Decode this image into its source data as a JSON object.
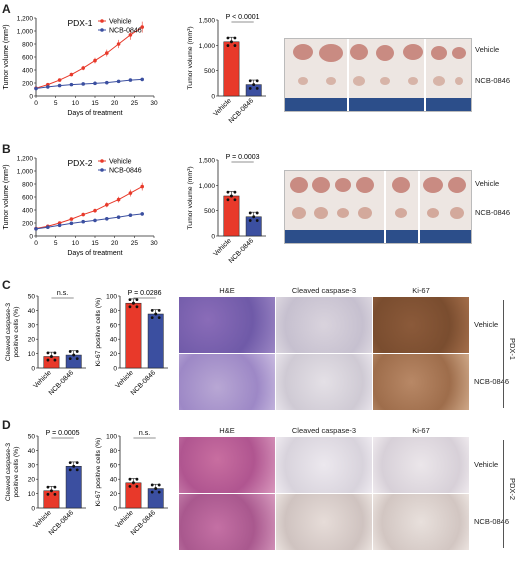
{
  "panels": {
    "A": {
      "letter": "A"
    },
    "B": {
      "letter": "B"
    },
    "C": {
      "letter": "C"
    },
    "D": {
      "letter": "D"
    }
  },
  "colors": {
    "vehicle": "#e8392a",
    "ncb": "#3b4fa0"
  },
  "legend": {
    "vehicle": "Vehicle",
    "ncb": "NCB-0846"
  },
  "chart_data": [
    {
      "id": "A-growth",
      "type": "line",
      "title": "PDX-1",
      "xlabel": "Days of treatment",
      "ylabel": "Tumor volume (mm³)",
      "xlim": [
        0,
        30
      ],
      "ylim": [
        0,
        1200
      ],
      "xticks": [
        "0",
        "5",
        "10",
        "15",
        "20",
        "25",
        "30"
      ],
      "yticks": [
        "0",
        "200",
        "400",
        "600",
        "800",
        "1,000",
        "1,200"
      ],
      "x": [
        0,
        3,
        6,
        9,
        12,
        15,
        18,
        21,
        24,
        27
      ],
      "series": [
        {
          "name": "Vehicle",
          "values": [
            120,
            175,
            245,
            330,
            430,
            545,
            660,
            800,
            940,
            1060
          ]
        },
        {
          "name": "NCB-0846",
          "values": [
            115,
            140,
            160,
            175,
            185,
            195,
            205,
            225,
            245,
            255
          ]
        }
      ]
    },
    {
      "id": "A-bar",
      "type": "bar",
      "ylabel": "Tumor volume (mm³)",
      "categories": [
        "Vehicle",
        "NCB-0846"
      ],
      "values": [
        1070,
        225
      ],
      "ylim": [
        0,
        1500
      ],
      "yticks": [
        "0",
        "500",
        "1,000",
        "1,500"
      ],
      "annotation": "P < 0.0001"
    },
    {
      "id": "B-growth",
      "type": "line",
      "title": "PDX-2",
      "xlabel": "Days of treatment",
      "ylabel": "Tumor volume (mm³)",
      "xlim": [
        0,
        30
      ],
      "ylim": [
        0,
        1200
      ],
      "xticks": [
        "0",
        "5",
        "10",
        "15",
        "20",
        "25",
        "30"
      ],
      "yticks": [
        "0",
        "200",
        "400",
        "600",
        "800",
        "1,000",
        "1,200"
      ],
      "x": [
        0,
        3,
        6,
        9,
        12,
        15,
        18,
        21,
        24,
        27
      ],
      "series": [
        {
          "name": "Vehicle",
          "values": [
            115,
            150,
            200,
            260,
            330,
            390,
            480,
            560,
            660,
            760
          ]
        },
        {
          "name": "NCB-0846",
          "values": [
            110,
            135,
            165,
            195,
            220,
            240,
            265,
            290,
            320,
            340
          ]
        }
      ]
    },
    {
      "id": "B-bar",
      "type": "bar",
      "ylabel": "Tumor volume (mm³)",
      "categories": [
        "Vehicle",
        "NCB-0846"
      ],
      "values": [
        790,
        380
      ],
      "ylim": [
        0,
        1500
      ],
      "yticks": [
        "0",
        "500",
        "1,000",
        "1,500"
      ],
      "annotation": "P = 0.0003"
    },
    {
      "id": "C-casp",
      "type": "bar",
      "ylabel": "Cleaved caspase-3 positive cells (%)",
      "categories": [
        "Vehicle",
        "NCB-0846"
      ],
      "values": [
        8,
        9
      ],
      "ylim": [
        0,
        50
      ],
      "yticks": [
        "0",
        "10",
        "20",
        "30",
        "40",
        "50"
      ],
      "annotation": "n.s."
    },
    {
      "id": "C-ki67",
      "type": "bar",
      "ylabel": "Ki-67 positive cells (%)",
      "categories": [
        "Vehicle",
        "NCB-0846"
      ],
      "values": [
        90,
        75
      ],
      "ylim": [
        0,
        100
      ],
      "yticks": [
        "0",
        "20",
        "40",
        "60",
        "80",
        "100"
      ],
      "annotation": "P = 0.0286"
    },
    {
      "id": "D-casp",
      "type": "bar",
      "ylabel": "Cleaved caspase-3 positive cells (%)",
      "categories": [
        "Vehicle",
        "NCB-0846"
      ],
      "values": [
        12,
        29
      ],
      "ylim": [
        0,
        50
      ],
      "yticks": [
        "0",
        "10",
        "20",
        "30",
        "40",
        "50"
      ],
      "annotation": "P = 0.0005"
    },
    {
      "id": "D-ki67",
      "type": "bar",
      "ylabel": "Ki-67 positive cells (%)",
      "categories": [
        "Vehicle",
        "NCB-0846"
      ],
      "values": [
        35,
        27
      ],
      "ylim": [
        0,
        100
      ],
      "yticks": [
        "0",
        "20",
        "40",
        "60",
        "80",
        "100"
      ],
      "annotation": "n.s."
    }
  ],
  "photos": {
    "A": {
      "vehicle": "Vehicle",
      "ncb": "NCB-0846"
    },
    "B": {
      "vehicle": "Vehicle",
      "ncb": "NCB-0846"
    }
  },
  "histology": {
    "C": {
      "cols": [
        "H&E",
        "Cleaved caspase-3",
        "Ki-67"
      ],
      "rows": [
        "Vehicle",
        "NCB-0846"
      ],
      "side": "PDX-1"
    },
    "D": {
      "cols": [
        "H&E",
        "Cleaved caspase-3",
        "Ki-67"
      ],
      "rows": [
        "Vehicle",
        "NCB-0846"
      ],
      "side": "PDX-2"
    }
  }
}
